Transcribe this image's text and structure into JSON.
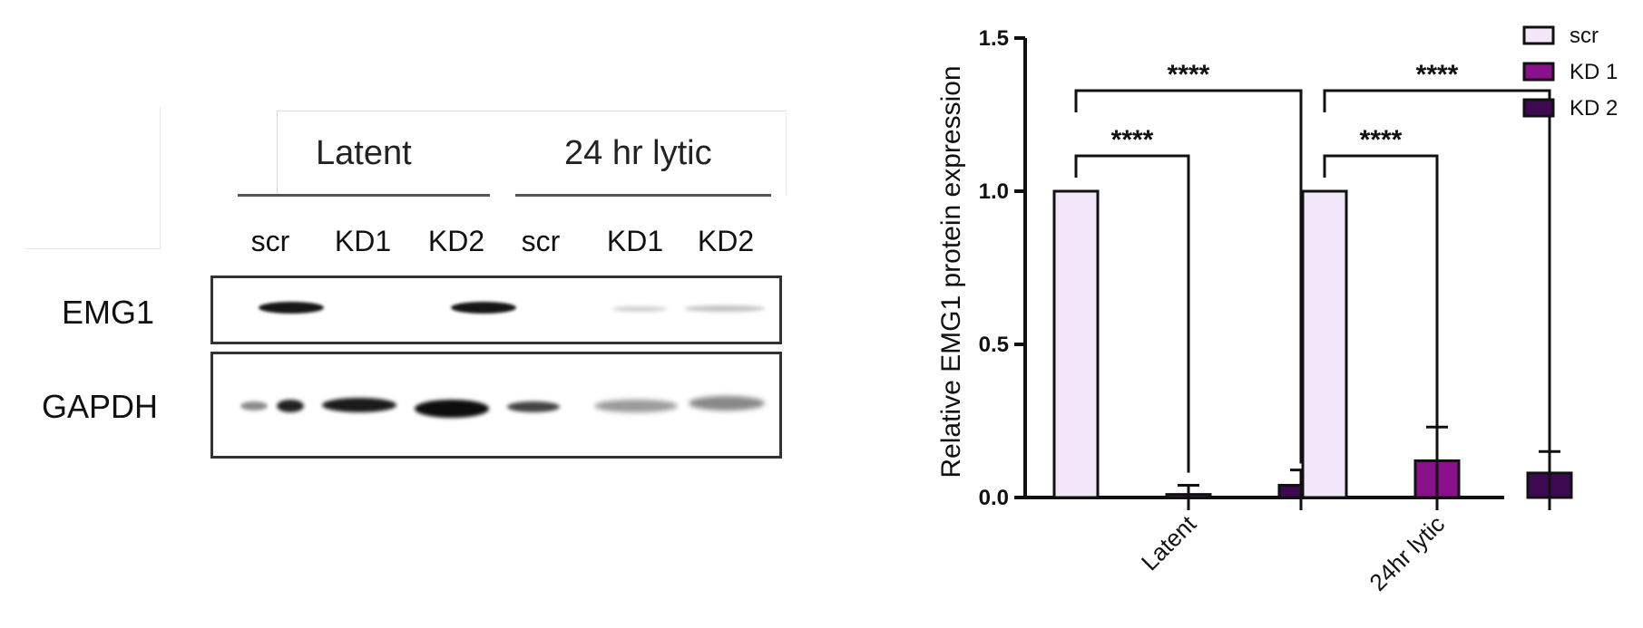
{
  "blot": {
    "conditions": [
      "Latent",
      "24 hr lytic"
    ],
    "lanes": [
      "scr",
      "KD1",
      "KD2",
      "scr",
      "KD1",
      "KD2"
    ],
    "rows": [
      "EMG1",
      "GAPDH"
    ]
  },
  "chart_data": {
    "type": "bar",
    "ylabel": "Relative EMG1 protein expression",
    "ylim": [
      0,
      1.5
    ],
    "yticks": [
      "0.0",
      "0.5",
      "1.0",
      "1.5"
    ],
    "categories": [
      "Latent",
      "24hr lytic"
    ],
    "series": [
      {
        "name": "scr",
        "values": [
          1.0,
          1.0
        ],
        "errors": [
          0,
          0
        ],
        "color": "#f3e6f8"
      },
      {
        "name": "KD 1",
        "values": [
          0.01,
          0.12
        ],
        "errors": [
          0.03,
          0.11
        ],
        "color": "#8a0f8a"
      },
      {
        "name": "KD 2",
        "values": [
          0.04,
          0.08
        ],
        "errors": [
          0.05,
          0.07
        ],
        "color": "#3d0a52"
      }
    ],
    "significance": [
      {
        "category": "Latent",
        "from": "scr",
        "to": "KD 1",
        "label": "****"
      },
      {
        "category": "Latent",
        "from": "scr",
        "to": "KD 2",
        "label": "****"
      },
      {
        "category": "24hr lytic",
        "from": "scr",
        "to": "KD 1",
        "label": "****"
      },
      {
        "category": "24hr lytic",
        "from": "scr",
        "to": "KD 2",
        "label": "****"
      }
    ],
    "legend_position": "top-right"
  }
}
